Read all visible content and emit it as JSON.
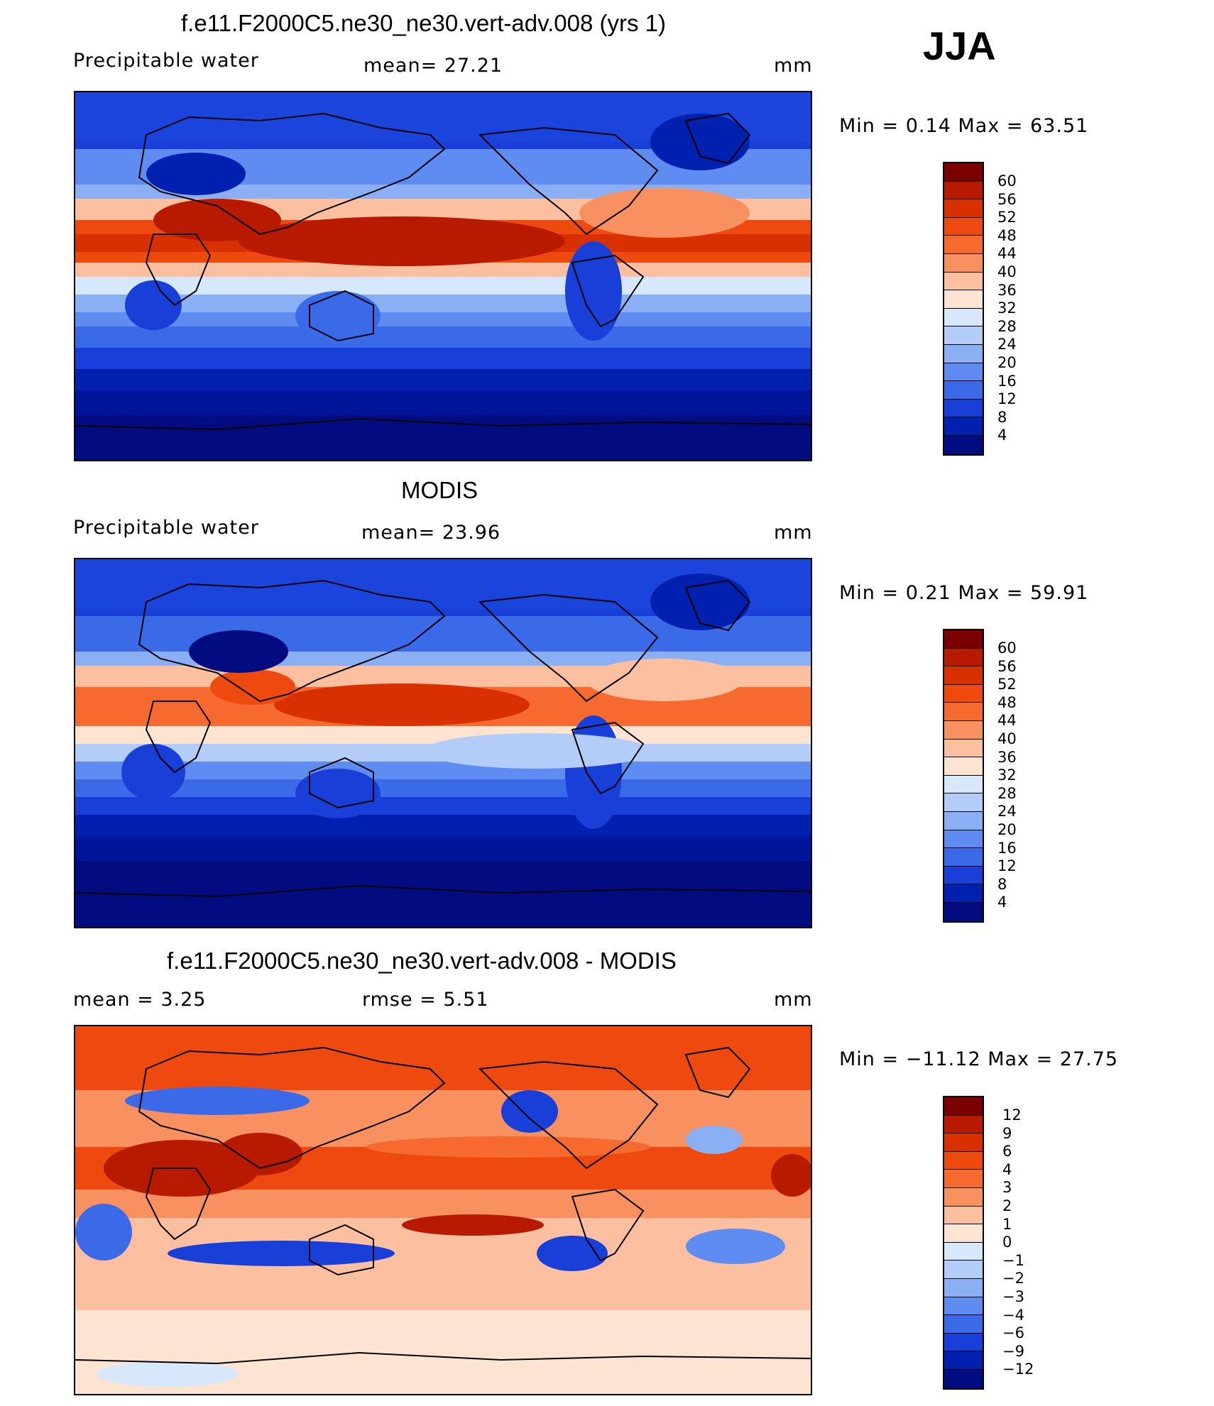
{
  "season": "JJA",
  "units": "mm",
  "panels": [
    {
      "title": "f.e11.F2000C5.ne30_ne30.vert-adv.008 (yrs 1)",
      "left_label": "Precipitable  water",
      "stat1": "mean=   27.21",
      "stat2": "",
      "right_label": "mm",
      "minmax": "Min  =     0.14  Max  =    63.51",
      "levels": [
        "60",
        "56",
        "52",
        "48",
        "44",
        "40",
        "36",
        "32",
        "28",
        "24",
        "20",
        "16",
        "12",
        "8",
        "4"
      ]
    },
    {
      "title": "MODIS",
      "left_label": "Precipitable  water",
      "stat1": "mean=   23.96",
      "stat2": "",
      "right_label": "mm",
      "minmax": "Min  =     0.21  Max  =    59.91",
      "levels": [
        "60",
        "56",
        "52",
        "48",
        "44",
        "40",
        "36",
        "32",
        "28",
        "24",
        "20",
        "16",
        "12",
        "8",
        "4"
      ]
    },
    {
      "title": "f.e11.F2000C5.ne30_ne30.vert-adv.008 - MODIS",
      "left_label": "mean  =      3.25",
      "stat1": "rmse  =      5.51",
      "stat2": "",
      "right_label": "mm",
      "minmax": "Min  = −11.12  Max  =    27.75",
      "levels": [
        "12",
        "9",
        "6",
        "4",
        "3",
        "2",
        "1",
        "0",
        "−1",
        "−2",
        "−3",
        "−4",
        "−6",
        "−9",
        "−12"
      ]
    }
  ],
  "colors": {
    "abs_scale": [
      "#7a0000",
      "#b81a00",
      "#d83000",
      "#ee4a10",
      "#f66a30",
      "#f89060",
      "#fcc0a0",
      "#fde4d0",
      "#d8e8fc",
      "#b4cdf8",
      "#8aaff4",
      "#5e8cf0",
      "#3a6ae8",
      "#1840d8",
      "#0020b0",
      "#000c80"
    ],
    "diff_scale": [
      "#7a0000",
      "#b81a00",
      "#d83000",
      "#ee4a10",
      "#f66a30",
      "#f89060",
      "#fcc0a0",
      "#fde4d0",
      "#d8e8fc",
      "#b4cdf8",
      "#8aaff4",
      "#5e8cf0",
      "#3a6ae8",
      "#1840d8",
      "#0020b0",
      "#000c80"
    ]
  }
}
